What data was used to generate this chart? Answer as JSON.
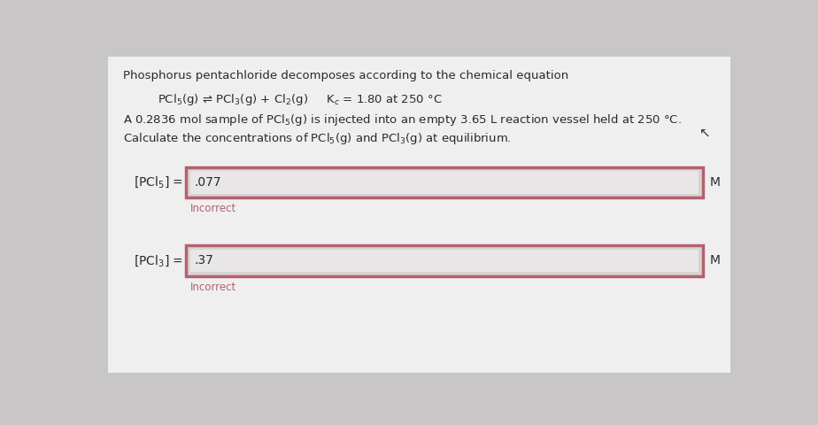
{
  "background_color": "#c8c6c6",
  "panel_color": "#efefef",
  "title_text": "Phosphorus pentachloride decomposes according to the chemical equation",
  "eq_full": "PCl$_5$(g) ⇌ PCl$_3$(g) + Cl$_2$(g)     K$_c$ = 1.80 at 250 °C",
  "sample_text": "A 0.2836 mol sample of PCl$_5$(g) is injected into an empty 3.65 L reaction vessel held at 250 °C.",
  "calc_text": "Calculate the concentrations of PCl$_5$(g) and PCl$_3$(g) at equilibrium.",
  "label1": "[PCl$_5$] =",
  "label2": "[PCl$_3$] =",
  "value1": ".077",
  "value2": ".37",
  "unit": "M",
  "incorrect_text": "Incorrect",
  "box_border_color": "#b5616e",
  "outer_box_fill": "#d8d4d4",
  "inner_input_fill": "#e8e6e6",
  "incorrect_color": "#b5616e",
  "text_color": "#2a2a2a",
  "font_size_title": 9.5,
  "font_size_body": 9.5,
  "font_size_equation": 9.5,
  "font_size_label": 10,
  "font_size_value": 10,
  "font_size_incorrect": 8.5
}
